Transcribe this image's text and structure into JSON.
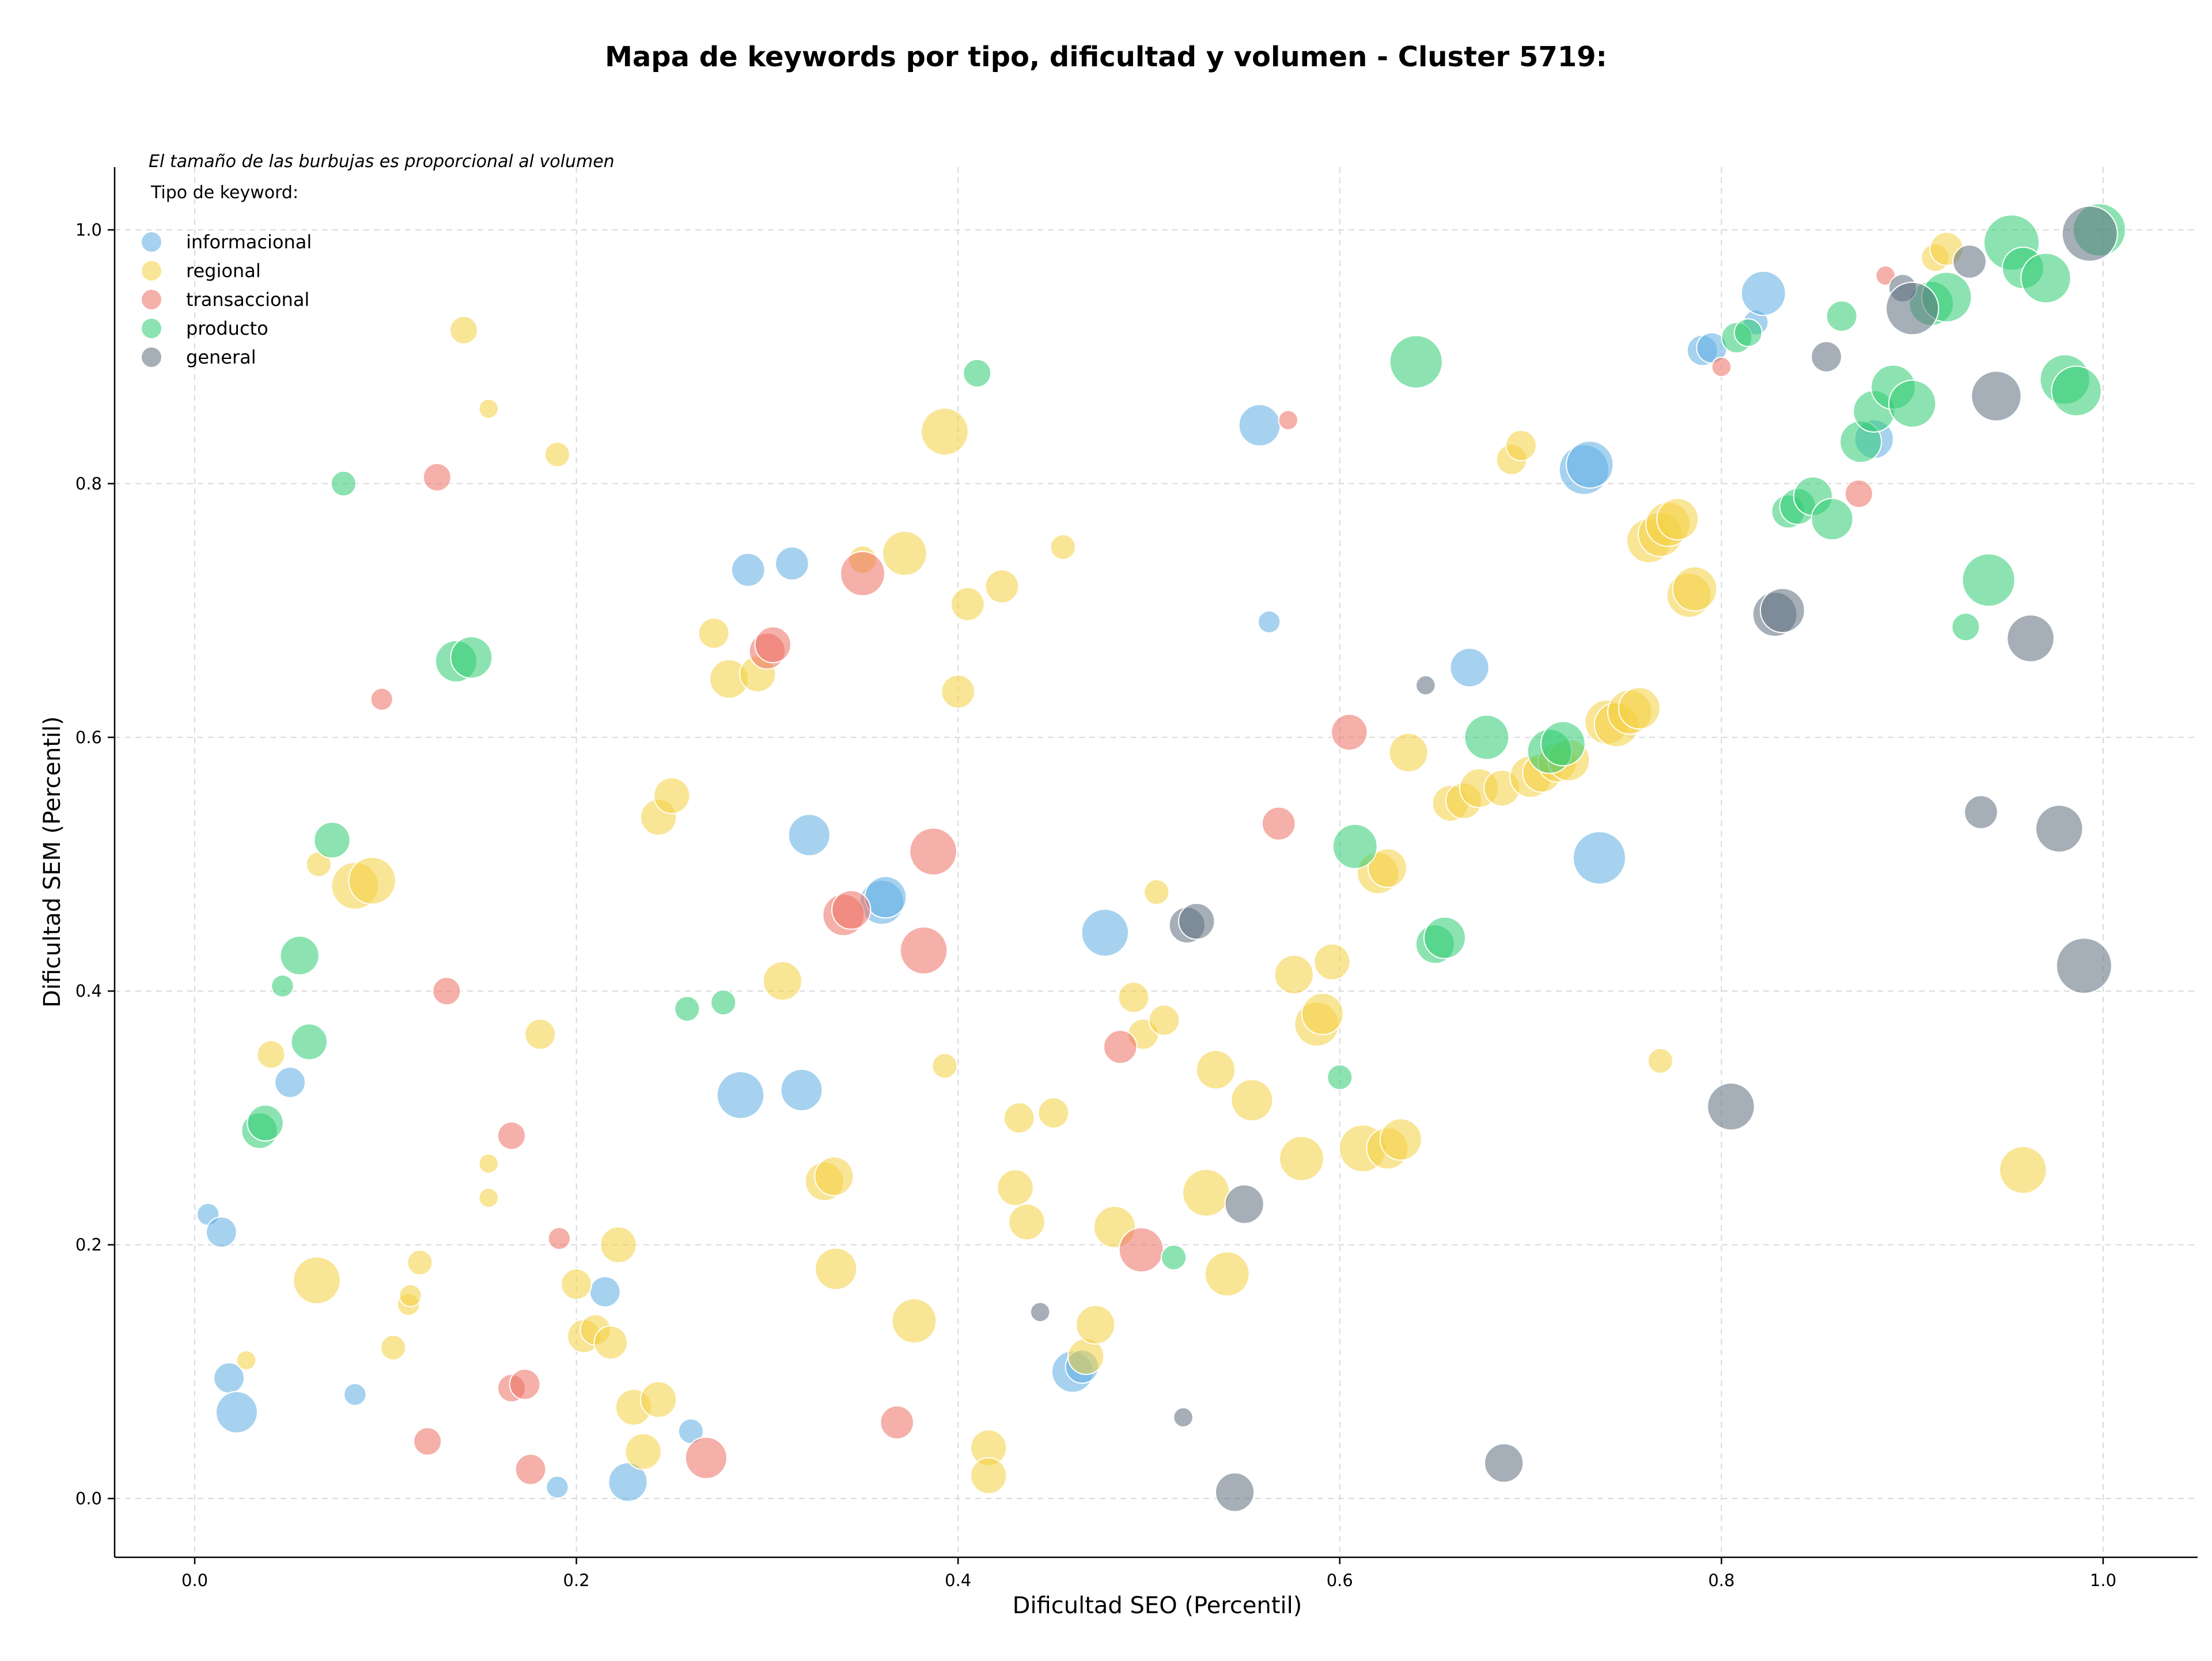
{
  "chart_data": {
    "type": "scatter",
    "title": "Mapa de keywords por tipo, dificultad y volumen - Cluster 5719:",
    "xlabel": "Dificultad SEO (Percentil)",
    "ylabel": "Dificultad SEM (Percentil)",
    "xlim": [
      -0.04,
      1.05
    ],
    "ylim": [
      -0.045,
      1.05
    ],
    "xticks": [
      "0.0",
      "0.2",
      "0.4",
      "0.6",
      "0.8",
      "1.0"
    ],
    "yticks": [
      "0.0",
      "0.2",
      "0.4",
      "0.6",
      "0.8",
      "1.0"
    ],
    "grid": true,
    "legend": {
      "placement": "top-left",
      "note": "El tamaño de las burbujas es proporcional al volumen",
      "title": "Tipo de keyword:"
    },
    "series": [
      {
        "name": "informacional",
        "color": "#5dade2",
        "points": [
          [
            0.007,
            0.224,
            0.8
          ],
          [
            0.014,
            0.21,
            1.1
          ],
          [
            0.018,
            0.095,
            1.1
          ],
          [
            0.022,
            0.068,
            1.5
          ],
          [
            0.05,
            0.328,
            1.1
          ],
          [
            0.084,
            0.082,
            0.8
          ],
          [
            0.19,
            0.009,
            0.8
          ],
          [
            0.215,
            0.163,
            1.1
          ],
          [
            0.227,
            0.013,
            1.4
          ],
          [
            0.26,
            0.053,
            0.9
          ],
          [
            0.286,
            0.318,
            1.7
          ],
          [
            0.29,
            0.732,
            1.2
          ],
          [
            0.313,
            0.737,
            1.2
          ],
          [
            0.318,
            0.322,
            1.5
          ],
          [
            0.322,
            0.523,
            1.5
          ],
          [
            0.36,
            0.47,
            1.6
          ],
          [
            0.362,
            0.474,
            1.5
          ],
          [
            0.46,
            0.1,
            1.5
          ],
          [
            0.465,
            0.104,
            1.2
          ],
          [
            0.477,
            0.446,
            1.7
          ],
          [
            0.558,
            0.846,
            1.5
          ],
          [
            0.563,
            0.691,
            0.8
          ],
          [
            0.668,
            0.655,
            1.4
          ],
          [
            0.728,
            0.811,
            1.8
          ],
          [
            0.731,
            0.815,
            1.7
          ],
          [
            0.736,
            0.505,
            1.9
          ],
          [
            0.79,
            0.905,
            1.1
          ],
          [
            0.795,
            0.907,
            1.1
          ],
          [
            0.818,
            0.927,
            0.9
          ],
          [
            0.822,
            0.95,
            1.6
          ],
          [
            0.88,
            0.835,
            1.4
          ]
        ]
      },
      {
        "name": "regional",
        "color": "#f4d03f",
        "points": [
          [
            0.027,
            0.109,
            0.7
          ],
          [
            0.04,
            0.35,
            1.0
          ],
          [
            0.065,
            0.5,
            0.9
          ],
          [
            0.064,
            0.172,
            1.7
          ],
          [
            0.084,
            0.483,
            1.7
          ],
          [
            0.093,
            0.487,
            1.7
          ],
          [
            0.104,
            0.119,
            0.9
          ],
          [
            0.112,
            0.153,
            0.8
          ],
          [
            0.113,
            0.16,
            0.8
          ],
          [
            0.118,
            0.186,
            0.9
          ],
          [
            0.141,
            0.921,
            1.0
          ],
          [
            0.154,
            0.237,
            0.7
          ],
          [
            0.154,
            0.264,
            0.7
          ],
          [
            0.154,
            0.859,
            0.7
          ],
          [
            0.181,
            0.366,
            1.1
          ],
          [
            0.19,
            0.823,
            0.9
          ],
          [
            0.2,
            0.169,
            1.1
          ],
          [
            0.204,
            0.128,
            1.2
          ],
          [
            0.21,
            0.133,
            1.1
          ],
          [
            0.218,
            0.123,
            1.2
          ],
          [
            0.222,
            0.2,
            1.3
          ],
          [
            0.23,
            0.072,
            1.3
          ],
          [
            0.235,
            0.037,
            1.3
          ],
          [
            0.243,
            0.078,
            1.3
          ],
          [
            0.243,
            0.537,
            1.3
          ],
          [
            0.25,
            0.554,
            1.3
          ],
          [
            0.272,
            0.682,
            1.1
          ],
          [
            0.28,
            0.646,
            1.4
          ],
          [
            0.295,
            0.65,
            1.3
          ],
          [
            0.308,
            0.408,
            1.4
          ],
          [
            0.33,
            0.25,
            1.4
          ],
          [
            0.335,
            0.254,
            1.4
          ],
          [
            0.336,
            0.181,
            1.5
          ],
          [
            0.35,
            0.74,
            1.0
          ],
          [
            0.372,
            0.745,
            1.6
          ],
          [
            0.377,
            0.14,
            1.6
          ],
          [
            0.393,
            0.841,
            1.7
          ],
          [
            0.393,
            0.341,
            0.9
          ],
          [
            0.4,
            0.636,
            1.2
          ],
          [
            0.405,
            0.705,
            1.2
          ],
          [
            0.416,
            0.04,
            1.3
          ],
          [
            0.416,
            0.018,
            1.3
          ],
          [
            0.423,
            0.719,
            1.2
          ],
          [
            0.43,
            0.245,
            1.3
          ],
          [
            0.432,
            0.3,
            1.1
          ],
          [
            0.436,
            0.218,
            1.3
          ],
          [
            0.45,
            0.304,
            1.1
          ],
          [
            0.455,
            0.75,
            0.9
          ],
          [
            0.467,
            0.112,
            1.3
          ],
          [
            0.472,
            0.137,
            1.4
          ],
          [
            0.482,
            0.214,
            1.5
          ],
          [
            0.492,
            0.395,
            1.1
          ],
          [
            0.497,
            0.366,
            1.1
          ],
          [
            0.504,
            0.478,
            0.9
          ],
          [
            0.508,
            0.377,
            1.1
          ],
          [
            0.53,
            0.241,
            1.7
          ],
          [
            0.535,
            0.338,
            1.4
          ],
          [
            0.541,
            0.177,
            1.6
          ],
          [
            0.554,
            0.314,
            1.5
          ],
          [
            0.576,
            0.413,
            1.4
          ],
          [
            0.58,
            0.268,
            1.6
          ],
          [
            0.588,
            0.374,
            1.6
          ],
          [
            0.591,
            0.382,
            1.5
          ],
          [
            0.596,
            0.423,
            1.3
          ],
          [
            0.612,
            0.276,
            1.7
          ],
          [
            0.62,
            0.493,
            1.5
          ],
          [
            0.625,
            0.497,
            1.4
          ],
          [
            0.625,
            0.276,
            1.5
          ],
          [
            0.632,
            0.283,
            1.5
          ],
          [
            0.636,
            0.588,
            1.4
          ],
          [
            0.658,
            0.548,
            1.3
          ],
          [
            0.665,
            0.55,
            1.3
          ],
          [
            0.673,
            0.56,
            1.4
          ],
          [
            0.685,
            0.56,
            1.3
          ],
          [
            0.69,
            0.819,
            1.1
          ],
          [
            0.695,
            0.83,
            1.1
          ],
          [
            0.7,
            0.569,
            1.5
          ],
          [
            0.706,
            0.572,
            1.4
          ],
          [
            0.714,
            0.58,
            1.4
          ],
          [
            0.72,
            0.582,
            1.5
          ],
          [
            0.74,
            0.612,
            1.6
          ],
          [
            0.745,
            0.61,
            1.6
          ],
          [
            0.752,
            0.62,
            1.6
          ],
          [
            0.757,
            0.623,
            1.5
          ],
          [
            0.762,
            0.755,
            1.6
          ],
          [
            0.768,
            0.76,
            1.6
          ],
          [
            0.772,
            0.768,
            1.6
          ],
          [
            0.777,
            0.772,
            1.5
          ],
          [
            0.783,
            0.712,
            1.6
          ],
          [
            0.786,
            0.717,
            1.6
          ],
          [
            0.768,
            0.345,
            0.9
          ],
          [
            0.912,
            0.978,
            1.0
          ],
          [
            0.918,
            0.985,
            1.2
          ],
          [
            0.958,
            0.259,
            1.7
          ]
        ]
      },
      {
        "name": "transaccional",
        "color": "#ec7063",
        "points": [
          [
            0.098,
            0.63,
            0.8
          ],
          [
            0.122,
            0.045,
            1.0
          ],
          [
            0.127,
            0.805,
            1.0
          ],
          [
            0.132,
            0.4,
            1.0
          ],
          [
            0.166,
            0.286,
            1.0
          ],
          [
            0.166,
            0.087,
            1.0
          ],
          [
            0.173,
            0.09,
            1.1
          ],
          [
            0.176,
            0.023,
            1.1
          ],
          [
            0.191,
            0.205,
            0.8
          ],
          [
            0.268,
            0.032,
            1.5
          ],
          [
            0.3,
            0.668,
            1.3
          ],
          [
            0.303,
            0.673,
            1.3
          ],
          [
            0.34,
            0.46,
            1.5
          ],
          [
            0.344,
            0.464,
            1.4
          ],
          [
            0.35,
            0.729,
            1.6
          ],
          [
            0.368,
            0.06,
            1.2
          ],
          [
            0.382,
            0.432,
            1.7
          ],
          [
            0.387,
            0.51,
            1.7
          ],
          [
            0.485,
            0.356,
            1.2
          ],
          [
            0.496,
            0.196,
            1.6
          ],
          [
            0.573,
            0.85,
            0.7
          ],
          [
            0.605,
            0.604,
            1.3
          ],
          [
            0.568,
            0.532,
            1.2
          ],
          [
            0.8,
            0.892,
            0.7
          ],
          [
            0.872,
            0.792,
            1.0
          ],
          [
            0.886,
            0.964,
            0.7
          ]
        ]
      },
      {
        "name": "producto",
        "color": "#2ecc71",
        "points": [
          [
            0.046,
            0.404,
            0.8
          ],
          [
            0.034,
            0.29,
            1.3
          ],
          [
            0.037,
            0.296,
            1.3
          ],
          [
            0.055,
            0.428,
            1.4
          ],
          [
            0.06,
            0.36,
            1.3
          ],
          [
            0.072,
            0.519,
            1.3
          ],
          [
            0.078,
            0.8,
            0.9
          ],
          [
            0.137,
            0.66,
            1.5
          ],
          [
            0.145,
            0.663,
            1.5
          ],
          [
            0.258,
            0.386,
            0.9
          ],
          [
            0.277,
            0.391,
            0.9
          ],
          [
            0.41,
            0.887,
            1.0
          ],
          [
            0.513,
            0.19,
            0.9
          ],
          [
            0.6,
            0.332,
            0.9
          ],
          [
            0.608,
            0.514,
            1.6
          ],
          [
            0.64,
            0.896,
            1.9
          ],
          [
            0.65,
            0.437,
            1.4
          ],
          [
            0.655,
            0.442,
            1.5
          ],
          [
            0.677,
            0.6,
            1.6
          ],
          [
            0.71,
            0.589,
            1.6
          ],
          [
            0.717,
            0.595,
            1.6
          ],
          [
            0.808,
            0.915,
            1.1
          ],
          [
            0.814,
            0.919,
            1.0
          ],
          [
            0.835,
            0.778,
            1.2
          ],
          [
            0.84,
            0.782,
            1.3
          ],
          [
            0.848,
            0.79,
            1.4
          ],
          [
            0.858,
            0.772,
            1.5
          ],
          [
            0.863,
            0.932,
            1.1
          ],
          [
            0.873,
            0.833,
            1.5
          ],
          [
            0.88,
            0.857,
            1.5
          ],
          [
            0.89,
            0.876,
            1.6
          ],
          [
            0.9,
            0.863,
            1.7
          ],
          [
            0.91,
            0.942,
            1.6
          ],
          [
            0.918,
            0.947,
            1.8
          ],
          [
            0.928,
            0.687,
            1.0
          ],
          [
            0.94,
            0.724,
            1.9
          ],
          [
            0.952,
            0.99,
            2.0
          ],
          [
            0.958,
            0.97,
            1.5
          ],
          [
            0.97,
            0.962,
            1.8
          ],
          [
            0.98,
            0.882,
            1.8
          ],
          [
            0.986,
            0.873,
            1.8
          ],
          [
            0.998,
            1.0,
            1.9
          ]
        ]
      },
      {
        "name": "general",
        "color": "#5d6d7e",
        "points": [
          [
            0.443,
            0.147,
            0.7
          ],
          [
            0.518,
            0.064,
            0.7
          ],
          [
            0.52,
            0.452,
            1.3
          ],
          [
            0.525,
            0.455,
            1.3
          ],
          [
            0.545,
            0.005,
            1.4
          ],
          [
            0.55,
            0.232,
            1.4
          ],
          [
            0.645,
            0.641,
            0.7
          ],
          [
            0.686,
            0.028,
            1.4
          ],
          [
            0.805,
            0.309,
            1.7
          ],
          [
            0.828,
            0.697,
            1.6
          ],
          [
            0.832,
            0.7,
            1.6
          ],
          [
            0.855,
            0.9,
            1.1
          ],
          [
            0.895,
            0.954,
            1.0
          ],
          [
            0.9,
            0.938,
            1.9
          ],
          [
            0.93,
            0.975,
            1.2
          ],
          [
            0.936,
            0.541,
            1.2
          ],
          [
            0.944,
            0.869,
            1.8
          ],
          [
            0.962,
            0.678,
            1.7
          ],
          [
            0.977,
            0.528,
            1.7
          ],
          [
            0.99,
            0.42,
            2.0
          ],
          [
            0.993,
            0.997,
            2.0
          ]
        ]
      }
    ]
  }
}
